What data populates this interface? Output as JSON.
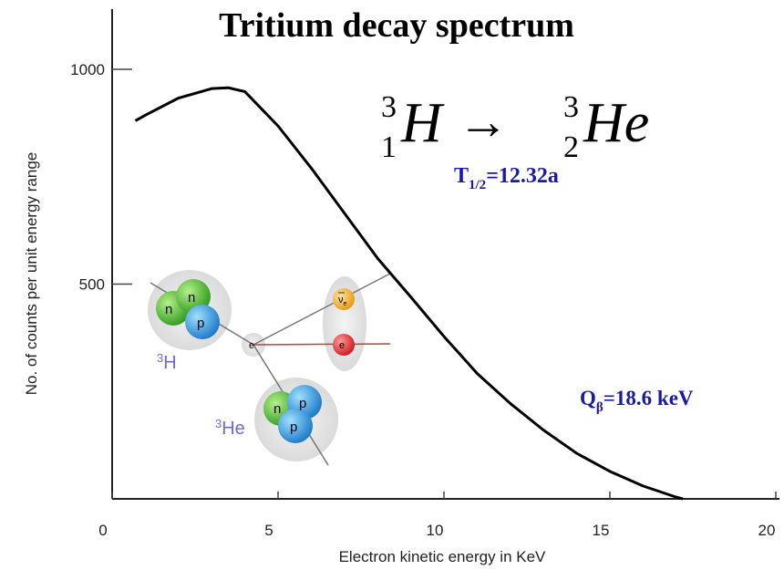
{
  "chart_data": {
    "type": "line",
    "title": "Tritium decay spectrum",
    "x_label": "Electron kinetic energy in KeV",
    "y_label": "No. of counts per unit energy range",
    "x": [
      0.7,
      1,
      2,
      3,
      3.5,
      4,
      5,
      6,
      7,
      8,
      9,
      10,
      11,
      12,
      13,
      14,
      15,
      16,
      17,
      17.2
    ],
    "values": [
      880,
      893,
      933,
      955,
      957,
      948,
      868,
      770,
      665,
      560,
      470,
      378,
      292,
      222,
      160,
      106,
      64,
      30,
      4,
      0
    ],
    "color": "#000000",
    "xlim": [
      0,
      20
    ],
    "ylim": [
      0,
      1140
    ],
    "xticks": [
      0,
      5,
      10,
      15,
      20
    ],
    "yticks": [
      500,
      1000
    ],
    "annotations": {
      "equation": {
        "a_mass": "3",
        "a_z": "1",
        "a": "H",
        "arrow": "→",
        "b_mass": "3",
        "b_z": "2",
        "b": "He"
      },
      "half_life": {
        "text": "T",
        "sub": "1/2",
        "rest": "=12.32a"
      },
      "q_value": {
        "text": "Q",
        "sub": "β",
        "rest": "=18.6 keV"
      }
    },
    "illustration": {
      "parent": {
        "mass": "3",
        "symbol": "H"
      },
      "daughter": {
        "mass": "3",
        "symbol": "He"
      },
      "neutron": "n",
      "proton": "p",
      "electron": "e",
      "neutrino": "ν",
      "neutrino_sub": "e"
    }
  }
}
